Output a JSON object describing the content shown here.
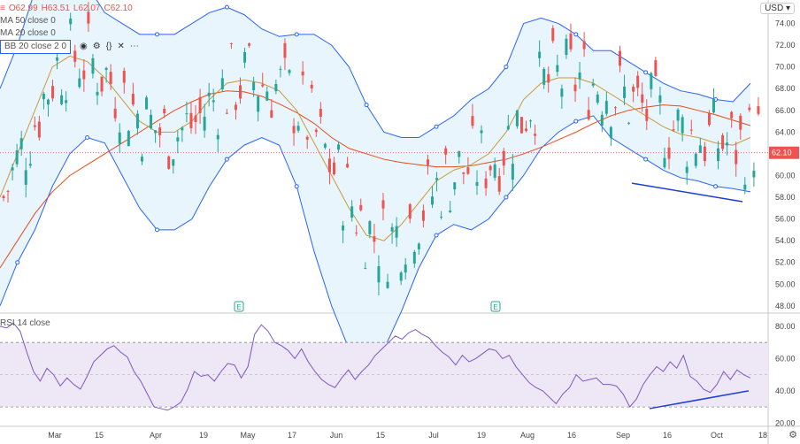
{
  "header": {
    "symbol_icon": "menu-icon",
    "ohlc": {
      "o": "O62.99",
      "h": "H63.51",
      "l": "L62.07",
      "c": "C62.10"
    },
    "ma50": "MA 50 close 0",
    "ma20": "MA 20 close 0",
    "bb": "BB 20 close 2 0",
    "currency": "USD"
  },
  "rsi_label": "RSI 14 close",
  "colors": {
    "up": "#26a69a",
    "down": "#ef5350",
    "bb": "#2962ff",
    "bbfill": "#e3f2fd",
    "ma50": "#e64a19",
    "ma20": "#c79a3a",
    "rsi": "#7e57c2",
    "rsiband": "#ede7f6"
  },
  "chart_data": [
    {
      "type": "candlestick",
      "title": "",
      "y_ticks": [
        48,
        50,
        52,
        54,
        56,
        58,
        60,
        62,
        64,
        66,
        68,
        70,
        72,
        74
      ],
      "ylim": [
        47.5,
        76
      ],
      "current_price": 62.1,
      "x_tick_labels": [
        "Mar",
        "15",
        "Apr",
        "19",
        "May",
        "17",
        "Jun",
        "15",
        "Jul",
        "19",
        "Aug",
        "16",
        "Sep",
        "16",
        "Oct",
        "18"
      ],
      "earnings_markers": [
        "E",
        "E"
      ],
      "series": [
        {
          "name": "MA 50 close 0",
          "values": [
            51.5,
            54,
            56.5,
            58.5,
            60,
            61,
            62,
            63,
            64,
            65,
            66,
            66.8,
            67.5,
            67.8,
            67.7,
            67.3,
            66.6,
            65.8,
            64.8,
            63.5,
            62.5,
            62,
            61.5,
            61.2,
            61,
            60.8,
            60.8,
            60.9,
            61.2,
            61.5,
            62,
            62.6,
            63.3,
            64,
            64.8,
            65.5,
            66,
            66.3,
            66.5,
            66.4,
            66,
            65.6,
            65.1,
            64.6
          ]
        },
        {
          "name": "MA 20 close 0",
          "values": [
            58,
            62,
            66,
            70,
            71,
            70.5,
            69,
            67,
            65,
            64,
            64,
            65,
            67,
            68.5,
            68.8,
            68.5,
            67.8,
            66,
            63,
            60,
            57,
            54.5,
            54,
            55.5,
            57.5,
            59.5,
            60.5,
            61,
            62,
            64,
            67,
            68.5,
            69,
            69,
            68.5,
            67.5,
            66.5,
            65.5,
            64.5,
            63.8,
            63.5,
            63,
            62.8,
            63.5
          ]
        }
      ]
    },
    {
      "type": "line",
      "title": "RSI 14 close",
      "y_ticks": [
        20,
        40,
        60,
        80
      ],
      "ylim": [
        18,
        86
      ],
      "bands": [
        30,
        70
      ],
      "series": [
        {
          "name": "RSI 14 close",
          "values": [
            80,
            79,
            82,
            77,
            64,
            52,
            46,
            54,
            50,
            43,
            48,
            44,
            41,
            49,
            58,
            62,
            66,
            68,
            64,
            61,
            52,
            46,
            38,
            30,
            29,
            28,
            30,
            33,
            41,
            52,
            49,
            50,
            46,
            52,
            57,
            56,
            48,
            55,
            75,
            81,
            77,
            70,
            68,
            65,
            60,
            66,
            58,
            52,
            47,
            44,
            42,
            48,
            53,
            47,
            52,
            56,
            62,
            66,
            70,
            74,
            72,
            76,
            78,
            75,
            73,
            68,
            64,
            61,
            56,
            62,
            58,
            60,
            63,
            66,
            65,
            60,
            62,
            55,
            50,
            45,
            42,
            40,
            36,
            32,
            38,
            42,
            50,
            46,
            47,
            48,
            44,
            44,
            43,
            38,
            30,
            35,
            44,
            50,
            55,
            52,
            58,
            54,
            62,
            49,
            46,
            41,
            39,
            44,
            52,
            47,
            53,
            50,
            48
          ]
        }
      ],
      "trendlines": 2
    }
  ]
}
